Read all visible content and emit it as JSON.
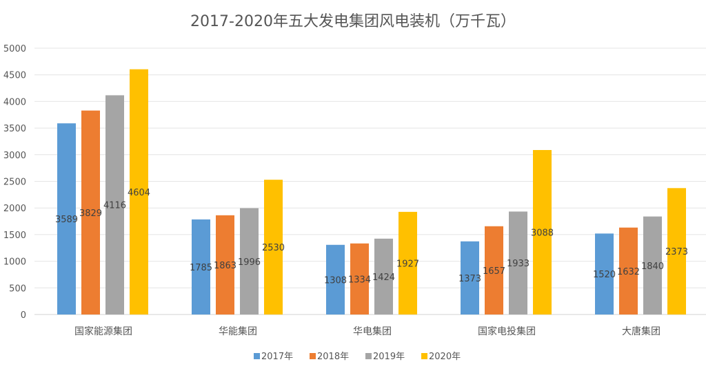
{
  "chart_data": {
    "type": "bar",
    "title": "2017-2020年五大发电集团风电装机（万千瓦）",
    "xlabel": "",
    "ylabel": "",
    "ylim": [
      0,
      5000
    ],
    "yticks": [
      "0",
      "500",
      "1000",
      "1500",
      "2000",
      "2500",
      "3000",
      "3500",
      "4000",
      "4500",
      "5000"
    ],
    "grid": true,
    "legend_position": "bottom",
    "categories": [
      "国家能源集团",
      "华能集团",
      "华电集团",
      "国家电投集团",
      "大唐集团"
    ],
    "series": [
      {
        "name": "2017年",
        "color": "#5B9BD5",
        "values": [
          3589,
          1785,
          1308,
          1373,
          1520
        ]
      },
      {
        "name": "2018年",
        "color": "#ED7D31",
        "values": [
          3829,
          1863,
          1334,
          1657,
          1632
        ]
      },
      {
        "name": "2019年",
        "color": "#A5A5A5",
        "values": [
          4116,
          1996,
          1424,
          1933,
          1840
        ]
      },
      {
        "name": "2020年",
        "color": "#FFC000",
        "values": [
          4604,
          2530,
          1927,
          3088,
          2373
        ]
      }
    ]
  }
}
